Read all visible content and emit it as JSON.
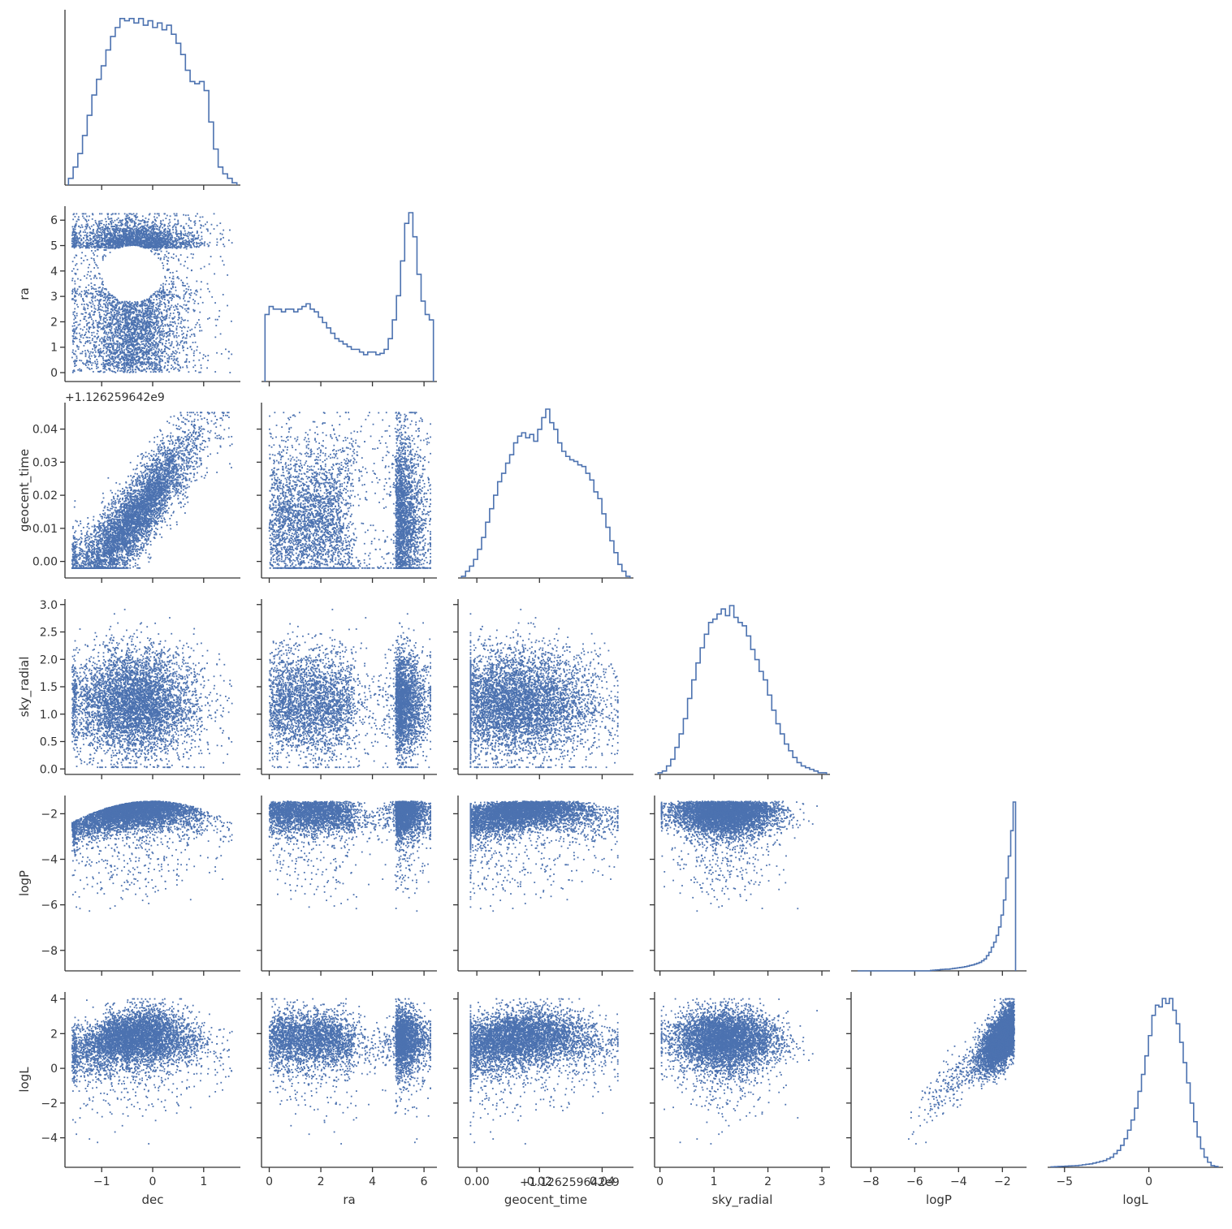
{
  "chart_data": {
    "type": "corner",
    "color": "#4c72b0",
    "axis_color": "#333333",
    "variables": [
      {
        "name": "dec",
        "label": "dec",
        "xlim": [
          -1.72,
          1.72
        ],
        "xticks": [
          -1,
          0,
          1
        ],
        "xtick_labels": [
          "−1",
          "0",
          "1"
        ],
        "hist_max": 0.75,
        "hist": [
          0.03,
          0.08,
          0.14,
          0.22,
          0.31,
          0.4,
          0.47,
          0.53,
          0.6,
          0.66,
          0.7,
          0.74,
          0.73,
          0.74,
          0.72,
          0.74,
          0.71,
          0.73,
          0.7,
          0.72,
          0.69,
          0.71,
          0.67,
          0.63,
          0.58,
          0.51,
          0.46,
          0.45,
          0.46,
          0.42,
          0.28,
          0.16,
          0.08,
          0.05,
          0.03,
          0.01
        ]
      },
      {
        "name": "ra",
        "label": "ra",
        "xlim": [
          -0.3,
          6.5
        ],
        "xticks": [
          0,
          2,
          4,
          6
        ],
        "xtick_labels": [
          "0",
          "2",
          "4",
          "6"
        ],
        "ylim": [
          -0.35,
          6.55
        ],
        "yticks": [
          0,
          1,
          2,
          3,
          4,
          5,
          6
        ],
        "ytick_labels": [
          "0",
          "1",
          "2",
          "3",
          "4",
          "5",
          "6"
        ],
        "hist_max": 6.3,
        "hist": [
          2.5,
          2.8,
          2.7,
          2.7,
          2.6,
          2.7,
          2.7,
          2.6,
          2.7,
          2.8,
          2.9,
          2.7,
          2.6,
          2.4,
          2.2,
          2.0,
          1.8,
          1.6,
          1.5,
          1.4,
          1.3,
          1.2,
          1.2,
          1.1,
          1.0,
          1.1,
          1.1,
          1.0,
          1.05,
          1.2,
          1.6,
          2.3,
          3.2,
          4.5,
          5.9,
          6.3,
          5.4,
          4.0,
          3.0,
          2.5,
          2.3
        ]
      },
      {
        "name": "geocent_time",
        "label": "geocent_time",
        "offset_label": "+1.126259642e9",
        "xlim": [
          -0.006,
          0.05
        ],
        "xticks": [
          0.0,
          0.02,
          0.04
        ],
        "xtick_labels": [
          "0.00",
          "0.02",
          "0.04"
        ],
        "ylim": [
          -0.005,
          0.048
        ],
        "yticks": [
          0.0,
          0.01,
          0.02,
          0.03,
          0.04
        ],
        "ytick_labels": [
          "0.00",
          "0.01",
          "0.02",
          "0.03",
          "0.04"
        ],
        "hist_max": 1.0,
        "hist": [
          0.01,
          0.04,
          0.07,
          0.11,
          0.17,
          0.24,
          0.33,
          0.41,
          0.49,
          0.57,
          0.62,
          0.68,
          0.73,
          0.8,
          0.84,
          0.86,
          0.83,
          0.85,
          0.81,
          0.88,
          0.95,
          1.0,
          0.92,
          0.88,
          0.8,
          0.75,
          0.72,
          0.7,
          0.69,
          0.67,
          0.66,
          0.62,
          0.58,
          0.51,
          0.47,
          0.38,
          0.3,
          0.22,
          0.15,
          0.08,
          0.04,
          0.01
        ]
      },
      {
        "name": "sky_radial",
        "label": "sky_radial",
        "xlim": [
          -0.1,
          3.15
        ],
        "xticks": [
          0,
          1,
          2,
          3
        ],
        "xtick_labels": [
          "0",
          "1",
          "2",
          "3"
        ],
        "ylim": [
          -0.1,
          3.1
        ],
        "yticks": [
          0.0,
          0.5,
          1.0,
          1.5,
          2.0,
          2.5,
          3.0
        ],
        "ytick_labels": [
          "0.0",
          "0.5",
          "1.0",
          "1.5",
          "2.0",
          "2.5",
          "3.0"
        ],
        "hist_max": 1.0,
        "hist": [
          0.01,
          0.02,
          0.05,
          0.09,
          0.16,
          0.24,
          0.33,
          0.45,
          0.56,
          0.66,
          0.75,
          0.83,
          0.9,
          0.92,
          0.95,
          0.98,
          0.94,
          1.0,
          0.93,
          0.9,
          0.88,
          0.82,
          0.74,
          0.68,
          0.61,
          0.56,
          0.47,
          0.38,
          0.3,
          0.24,
          0.18,
          0.14,
          0.1,
          0.07,
          0.05,
          0.04,
          0.03,
          0.02,
          0.01,
          0.01
        ]
      },
      {
        "name": "logP",
        "label": "logP",
        "xlim": [
          -8.9,
          -0.9
        ],
        "xticks": [
          -8,
          -6,
          -4,
          -2
        ],
        "xtick_labels": [
          "−8",
          "−6",
          "−4",
          "−2"
        ],
        "ylim": [
          -8.9,
          -1.2
        ],
        "yticks": [
          -8,
          -6,
          -4,
          -2
        ],
        "ytick_labels": [
          "−8",
          "−6",
          "−4",
          "−2"
        ],
        "hist_max": 1.0,
        "hist_start": -8.6,
        "hist_end": -1.4,
        "hist": [
          0.0,
          0.0,
          0.0,
          0.0,
          0.0,
          0.0,
          0.0,
          0.0,
          0.0,
          0.0,
          0.0,
          0.0,
          0.0,
          0.0,
          0.0,
          0.0,
          0.0,
          0.0,
          0.0,
          0.0,
          0.0,
          0.0,
          0.0,
          0.0,
          0.0,
          0.0,
          0.0,
          0.0,
          0.0,
          0.0,
          0.003,
          0.004,
          0.005,
          0.006,
          0.008,
          0.009,
          0.01,
          0.01,
          0.012,
          0.014,
          0.016,
          0.018,
          0.02,
          0.022,
          0.025,
          0.028,
          0.032,
          0.035,
          0.04,
          0.045,
          0.05,
          0.06,
          0.07,
          0.09,
          0.11,
          0.14,
          0.17,
          0.21,
          0.26,
          0.33,
          0.42,
          0.55,
          0.68,
          0.83,
          1.0
        ]
      },
      {
        "name": "logL",
        "label": "logL",
        "xlim": [
          -6.0,
          4.4
        ],
        "xticks": [
          -5,
          0
        ],
        "xtick_labels": [
          "−5",
          "0"
        ],
        "ylim": [
          -5.7,
          4.4
        ],
        "yticks": [
          -4,
          -2,
          0,
          2,
          4
        ],
        "ytick_labels": [
          "−4",
          "−2",
          "0",
          "2",
          "4"
        ],
        "hist_max": 1.0,
        "hist_start": -5.8,
        "hist_end": 4.1,
        "hist": [
          0.003,
          0.004,
          0.005,
          0.006,
          0.007,
          0.008,
          0.009,
          0.01,
          0.012,
          0.015,
          0.018,
          0.02,
          0.025,
          0.03,
          0.035,
          0.04,
          0.05,
          0.06,
          0.08,
          0.1,
          0.13,
          0.17,
          0.22,
          0.28,
          0.35,
          0.45,
          0.55,
          0.66,
          0.78,
          0.9,
          0.96,
          0.95,
          1.0,
          0.97,
          1.0,
          0.93,
          0.85,
          0.74,
          0.62,
          0.5,
          0.38,
          0.27,
          0.18,
          0.11,
          0.06,
          0.03,
          0.01,
          0.005
        ]
      }
    ]
  }
}
